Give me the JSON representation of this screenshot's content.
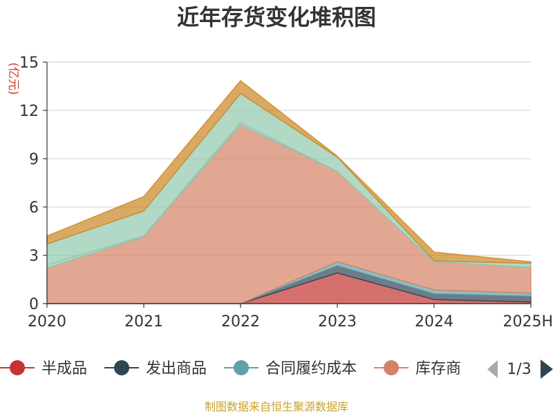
{
  "chart_data": {
    "type": "area",
    "stacked": true,
    "title": "近年存货变化堆积图",
    "ylabel": "(亿元)",
    "x": [
      "2020",
      "2021",
      "2022",
      "2023",
      "2024",
      "2025H"
    ],
    "ylim": [
      0,
      15
    ],
    "yticks": [
      0,
      3,
      6,
      9,
      12,
      15
    ],
    "grid": true,
    "series": [
      {
        "name": "半成品",
        "color": "#c23531",
        "values": [
          0,
          0,
          0,
          1.9,
          0.25,
          0.1
        ]
      },
      {
        "name": "发出商品",
        "color": "#2f4554",
        "values": [
          0,
          0,
          0,
          0.45,
          0.35,
          0.35
        ]
      },
      {
        "name": "合同履约成本",
        "color": "#61a0a8",
        "values": [
          0,
          0,
          0,
          0.25,
          0.25,
          0.2
        ]
      },
      {
        "name": "库存商品",
        "color": "#d48265",
        "values": [
          2.2,
          4.15,
          11.1,
          5.6,
          1.75,
          1.6
        ]
      },
      {
        "name": "",
        "color": "#91c7ae",
        "values": [
          0.2,
          0.05,
          0.15,
          0,
          0,
          0
        ]
      },
      {
        "name": "",
        "color": "#91c7ae",
        "values": [
          1.3,
          1.55,
          1.8,
          0.9,
          0.05,
          0.25
        ]
      },
      {
        "name": "",
        "color": "#ca8622",
        "values": [
          0.5,
          0.9,
          0.8,
          0.05,
          0.55,
          0.1
        ]
      }
    ]
  },
  "legend": {
    "items": [
      {
        "label": "半成品",
        "color": "#c23531"
      },
      {
        "label": "发出商品",
        "color": "#2f4554"
      },
      {
        "label": "合同履约成本",
        "color": "#61a0a8"
      },
      {
        "label": "库存商",
        "color": "#d48265"
      }
    ],
    "page": "1/3",
    "prev_color": "#aaaaaa",
    "next_color": "#2f4554"
  },
  "source": "制图数据来自恒生聚源数据库"
}
